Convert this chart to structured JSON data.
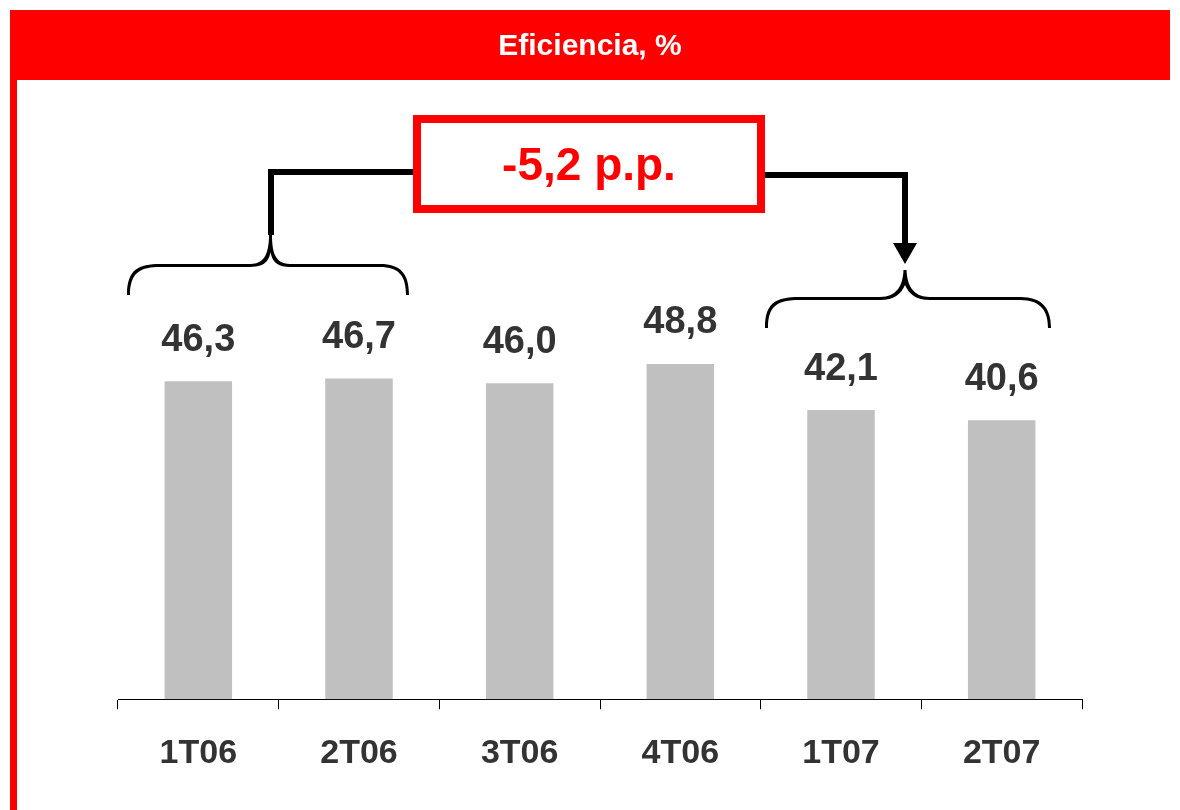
{
  "chart_data": {
    "type": "bar",
    "title": "Eficiencia, %",
    "categories": [
      "1T06",
      "2T06",
      "3T06",
      "4T06",
      "1T07",
      "2T07"
    ],
    "values": [
      46.3,
      46.7,
      46.0,
      48.8,
      42.1,
      40.6
    ],
    "color": "#c0c0c0",
    "value_labels": [
      "46,3",
      "46,7",
      "46,0",
      "48,8",
      "42,1",
      "40,6"
    ],
    "tick_labels": "x",
    "grid": false,
    "legend": false,
    "annotations": [
      "-5,2 p.p."
    ]
  }
}
